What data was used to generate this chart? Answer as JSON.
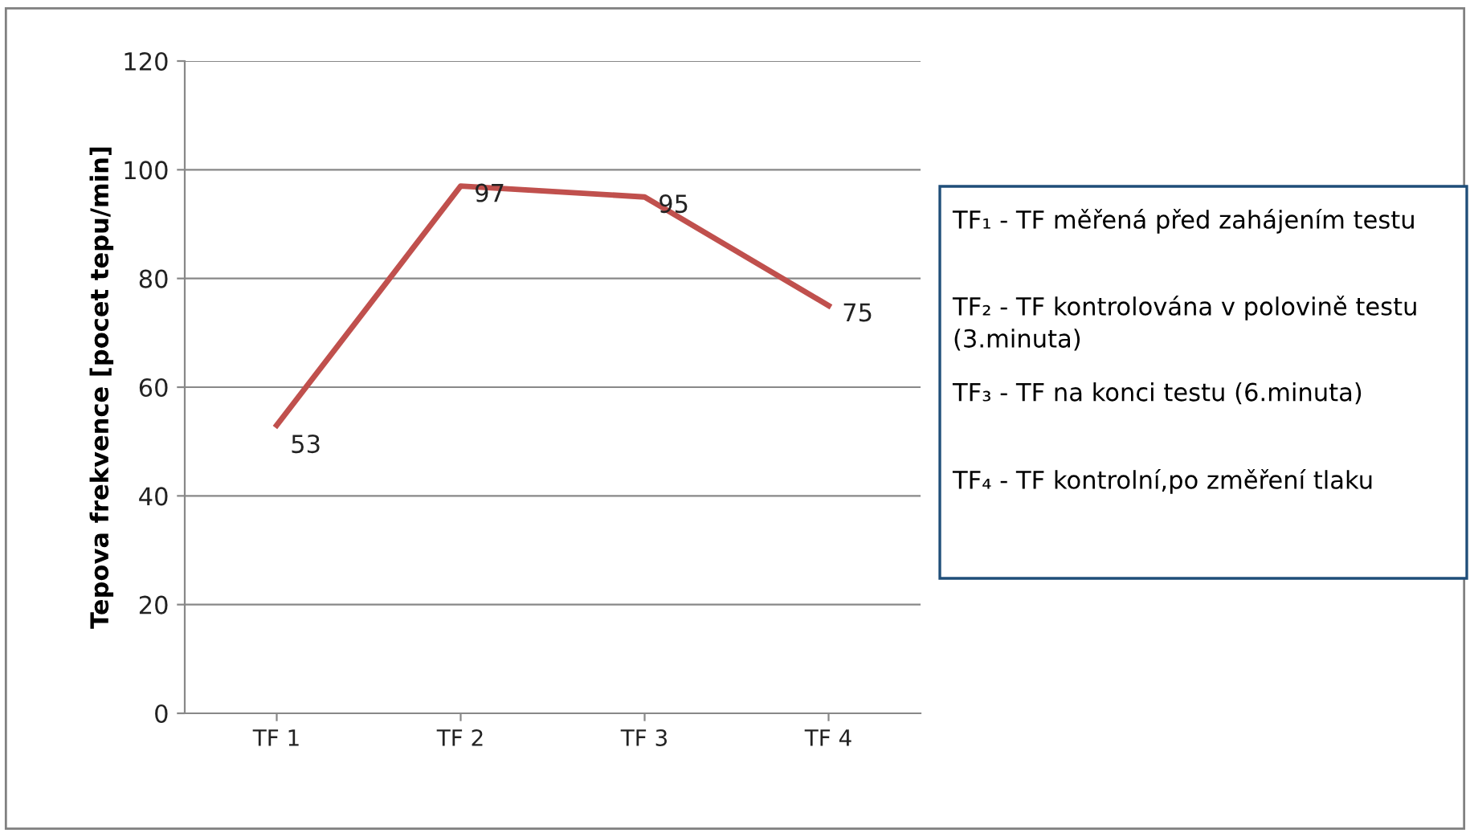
{
  "chart_data": {
    "type": "line",
    "ylabel": "Tepova frekvence [pocet tepu/min]",
    "categories": [
      "TF 1",
      "TF 2",
      "TF 3",
      "TF 4"
    ],
    "series": [
      {
        "color": "#c0504d",
        "values": [
          53,
          97,
          95,
          75
        ]
      }
    ],
    "ylim": [
      0,
      120
    ],
    "yticks": [
      0,
      20,
      40,
      60,
      80,
      100,
      120
    ],
    "grid": "y",
    "data_labels": true,
    "marker": "none",
    "line_style": "solid",
    "legend": false,
    "annotations": [
      "TF₁ - TF měřená před zahájením testu",
      "TF₂ - TF kontrolována v polovině testu (3.minuta)",
      "TF₃ - TF na konci testu (6.minuta)",
      "TF₄ - TF kontrolní,po změření tlaku"
    ]
  }
}
